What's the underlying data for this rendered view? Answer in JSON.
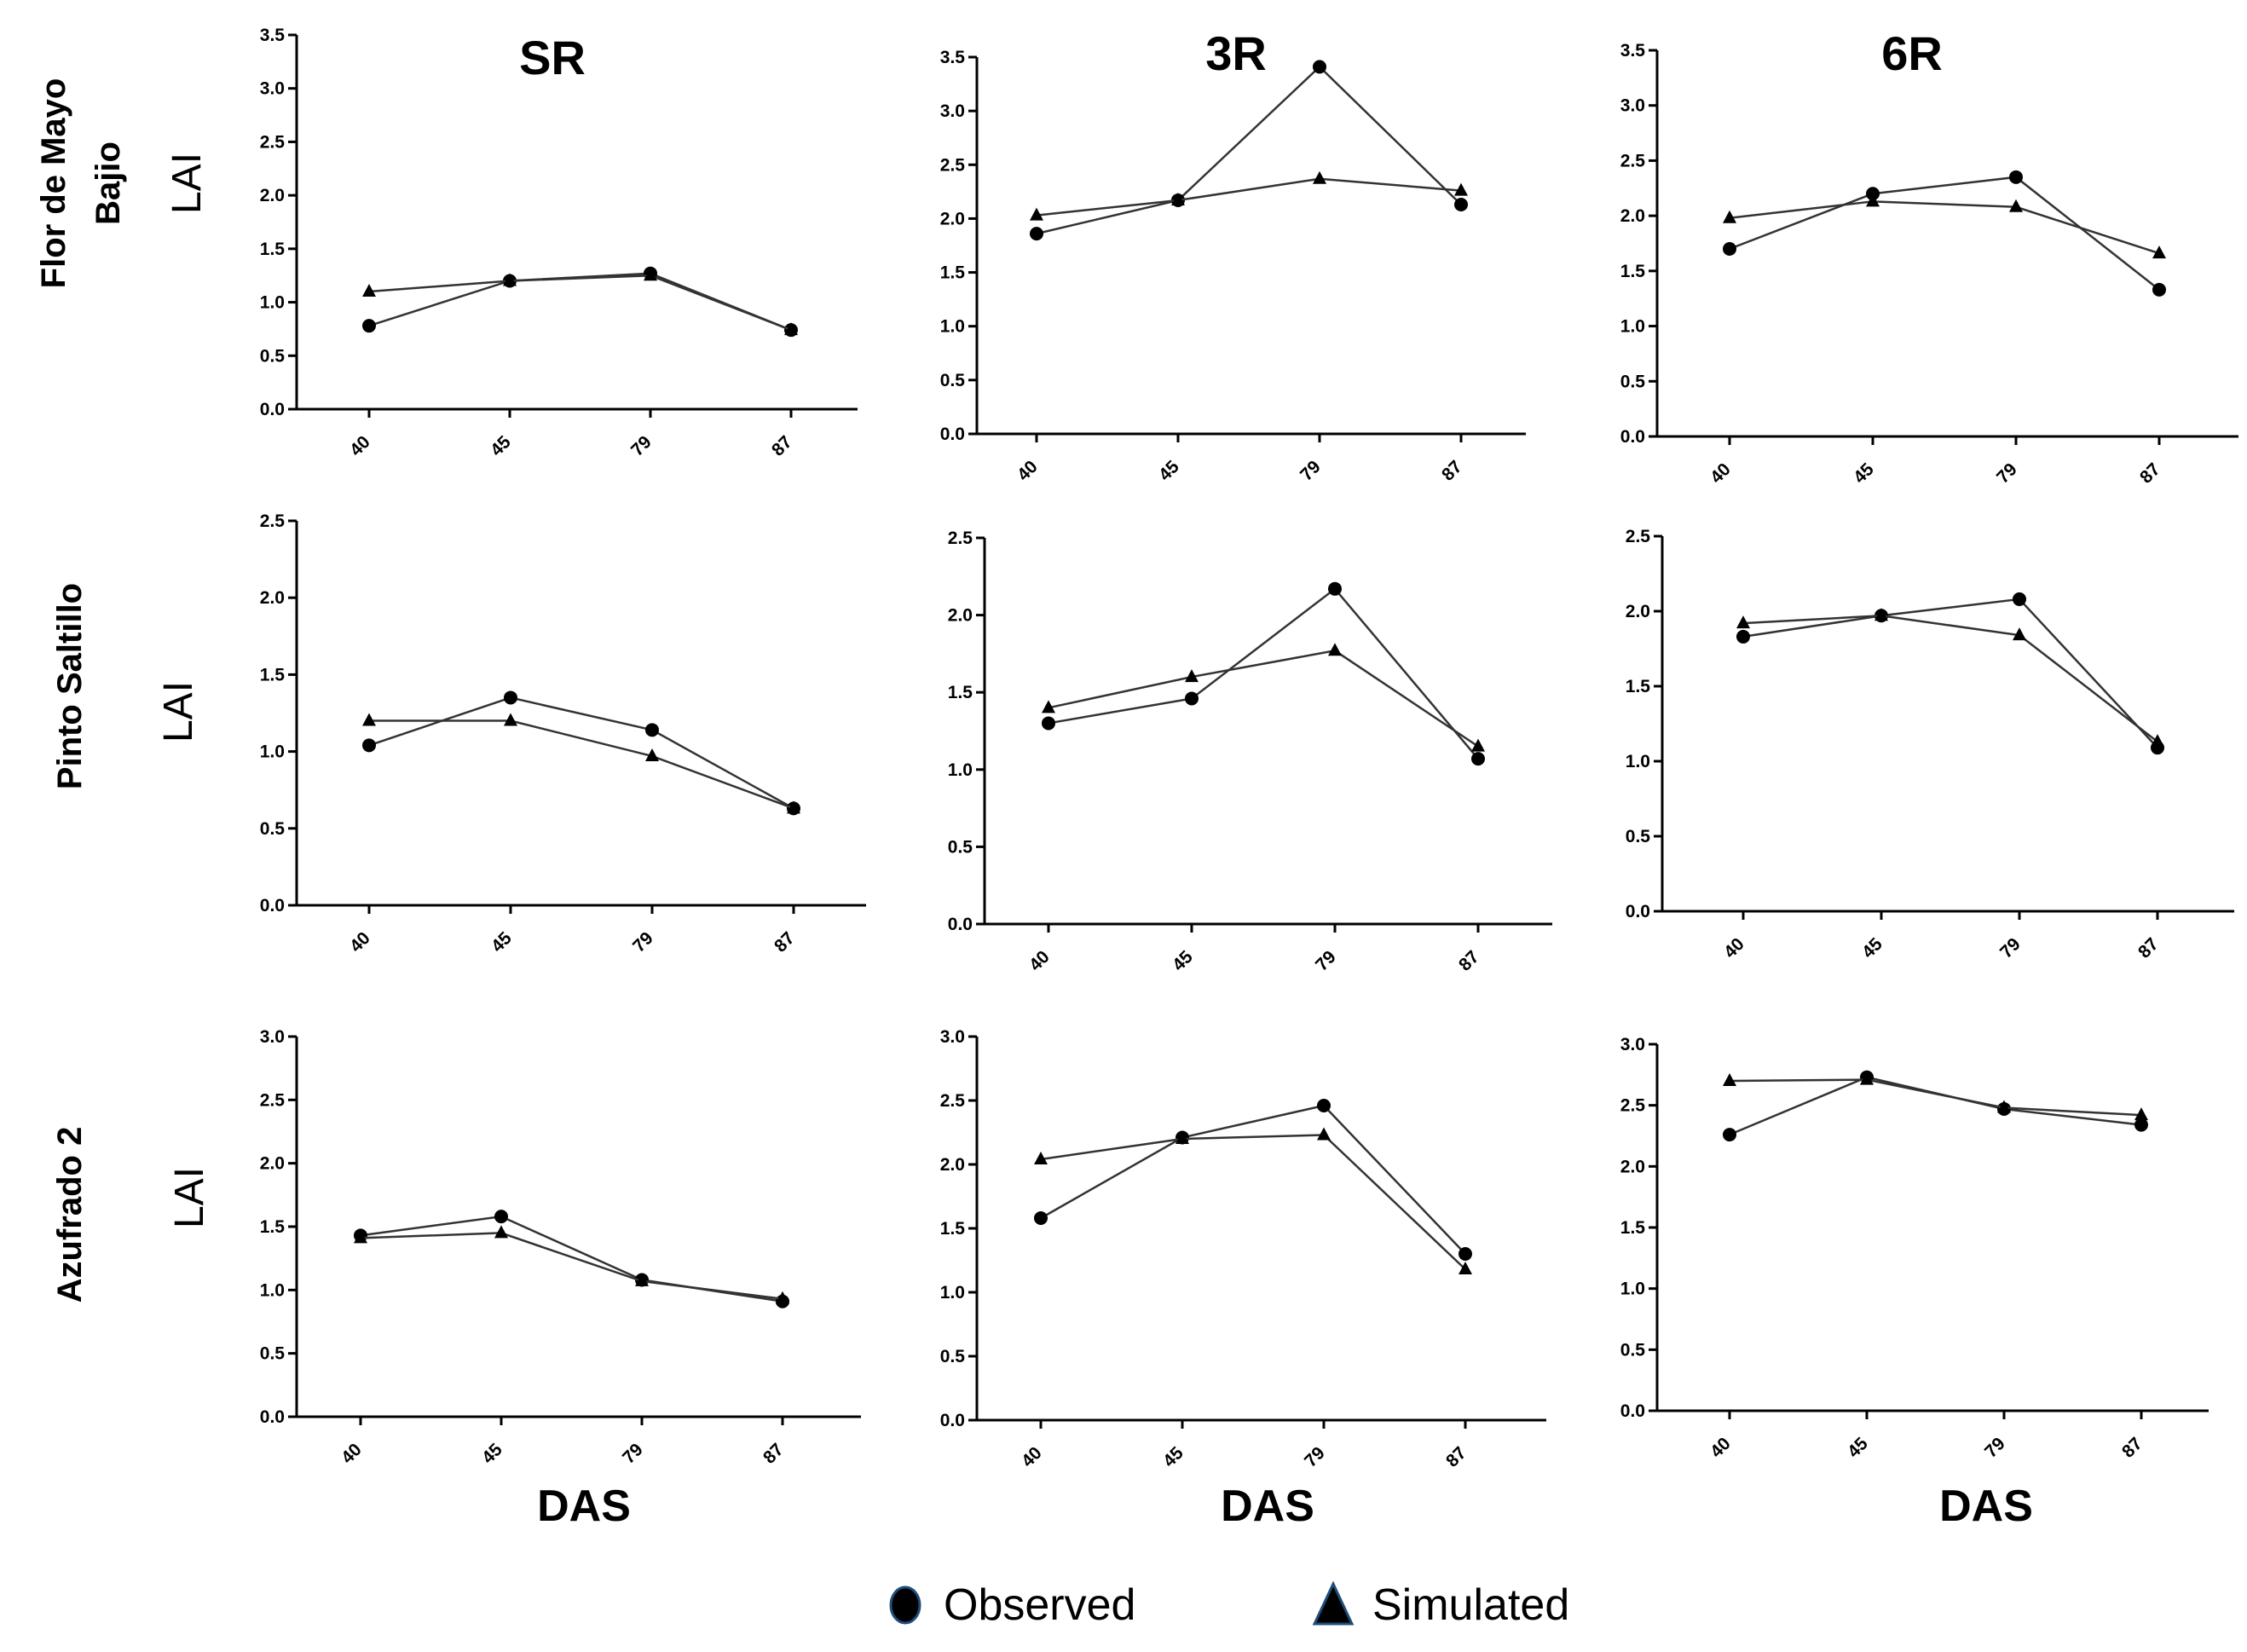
{
  "column_titles": [
    "SR",
    "3R",
    "6R"
  ],
  "row_labels": [
    [
      "Flor de Mayo",
      "Bajio"
    ],
    [
      "Pinto Saltillo"
    ],
    [
      "Azufrado 2"
    ]
  ],
  "y_label": "LAI",
  "x_label": "DAS",
  "legend": {
    "observed": "Observed",
    "simulated": "Simulated",
    "colors": {
      "observed_marker": "#000000",
      "simulated_marker": "#000000",
      "legend_outline": "#1f4e79"
    }
  },
  "chart_data": [
    {
      "type": "line",
      "row": 0,
      "col": 0,
      "categories": [
        "40",
        "45",
        "79",
        "87"
      ],
      "ylim": [
        0,
        3.5
      ],
      "yticks": [
        "0.0",
        "0.5",
        "1.0",
        "1.5",
        "2.0",
        "2.5",
        "3.0",
        "3.5"
      ],
      "series": [
        {
          "name": "Observed",
          "marker": "circle",
          "values": [
            0.78,
            1.2,
            1.27,
            0.74
          ]
        },
        {
          "name": "Simulated",
          "marker": "triangle",
          "values": [
            1.1,
            1.2,
            1.25,
            0.74
          ]
        }
      ]
    },
    {
      "type": "line",
      "row": 0,
      "col": 1,
      "categories": [
        "40",
        "45",
        "79",
        "87"
      ],
      "ylim": [
        0,
        3.5
      ],
      "yticks": [
        "0.0",
        "0.5",
        "1.0",
        "1.5",
        "2.0",
        "2.5",
        "3.0",
        "3.5"
      ],
      "series": [
        {
          "name": "Observed",
          "marker": "circle",
          "values": [
            1.86,
            2.17,
            3.41,
            2.13
          ]
        },
        {
          "name": "Simulated",
          "marker": "triangle",
          "values": [
            2.03,
            2.17,
            2.37,
            2.26
          ]
        }
      ]
    },
    {
      "type": "line",
      "row": 0,
      "col": 2,
      "categories": [
        "40",
        "45",
        "79",
        "87"
      ],
      "ylim": [
        0,
        3.5
      ],
      "yticks": [
        "0.0",
        "0.5",
        "1.0",
        "1.5",
        "2.0",
        "2.5",
        "3.0",
        "3.5"
      ],
      "series": [
        {
          "name": "Observed",
          "marker": "circle",
          "values": [
            1.7,
            2.2,
            2.35,
            1.33
          ]
        },
        {
          "name": "Simulated",
          "marker": "triangle",
          "values": [
            1.98,
            2.13,
            2.08,
            1.66
          ]
        }
      ]
    },
    {
      "type": "line",
      "row": 1,
      "col": 0,
      "categories": [
        "40",
        "45",
        "79",
        "87"
      ],
      "ylim": [
        0,
        2.5
      ],
      "yticks": [
        "0.0",
        "0.5",
        "1.0",
        "1.5",
        "2.0",
        "2.5"
      ],
      "series": [
        {
          "name": "Observed",
          "marker": "circle",
          "values": [
            1.04,
            1.35,
            1.14,
            0.63
          ]
        },
        {
          "name": "Simulated",
          "marker": "triangle",
          "values": [
            1.2,
            1.2,
            0.97,
            0.63
          ]
        }
      ]
    },
    {
      "type": "line",
      "row": 1,
      "col": 1,
      "categories": [
        "40",
        "45",
        "79",
        "87"
      ],
      "ylim": [
        0,
        2.5
      ],
      "yticks": [
        "0.0",
        "0.5",
        "1.0",
        "1.5",
        "2.0",
        "2.5"
      ],
      "series": [
        {
          "name": "Observed",
          "marker": "circle",
          "values": [
            1.3,
            1.46,
            2.17,
            1.07
          ]
        },
        {
          "name": "Simulated",
          "marker": "triangle",
          "values": [
            1.4,
            1.6,
            1.77,
            1.15
          ]
        }
      ]
    },
    {
      "type": "line",
      "row": 1,
      "col": 2,
      "categories": [
        "40",
        "45",
        "79",
        "87"
      ],
      "ylim": [
        0,
        2.5
      ],
      "yticks": [
        "0.0",
        "0.5",
        "1.0",
        "1.5",
        "2.0",
        "2.5"
      ],
      "series": [
        {
          "name": "Observed",
          "marker": "circle",
          "values": [
            1.83,
            1.97,
            2.08,
            1.09
          ]
        },
        {
          "name": "Simulated",
          "marker": "triangle",
          "values": [
            1.92,
            1.97,
            1.84,
            1.13
          ]
        }
      ]
    },
    {
      "type": "line",
      "row": 2,
      "col": 0,
      "categories": [
        "40",
        "45",
        "79",
        "87"
      ],
      "ylim": [
        0,
        3.0
      ],
      "yticks": [
        "0.0",
        "0.5",
        "1.0",
        "1.5",
        "2.0",
        "2.5",
        "3.0"
      ],
      "series": [
        {
          "name": "Observed",
          "marker": "circle",
          "values": [
            1.43,
            1.58,
            1.08,
            0.91
          ]
        },
        {
          "name": "Simulated",
          "marker": "triangle",
          "values": [
            1.41,
            1.45,
            1.07,
            0.93
          ]
        }
      ]
    },
    {
      "type": "line",
      "row": 2,
      "col": 1,
      "categories": [
        "40",
        "45",
        "79",
        "87"
      ],
      "ylim": [
        0,
        3.0
      ],
      "yticks": [
        "0.0",
        "0.5",
        "1.0",
        "1.5",
        "2.0",
        "2.5",
        "3.0"
      ],
      "series": [
        {
          "name": "Observed",
          "marker": "circle",
          "values": [
            1.58,
            2.21,
            2.46,
            1.3
          ]
        },
        {
          "name": "Simulated",
          "marker": "triangle",
          "values": [
            2.04,
            2.2,
            2.23,
            1.18
          ]
        }
      ]
    },
    {
      "type": "line",
      "row": 2,
      "col": 2,
      "categories": [
        "40",
        "45",
        "79",
        "87"
      ],
      "ylim": [
        0,
        3.0
      ],
      "yticks": [
        "0.0",
        "0.5",
        "1.0",
        "1.5",
        "2.0",
        "2.5",
        "3.0"
      ],
      "series": [
        {
          "name": "Observed",
          "marker": "circle",
          "values": [
            2.26,
            2.73,
            2.47,
            2.34
          ]
        },
        {
          "name": "Simulated",
          "marker": "triangle",
          "values": [
            2.7,
            2.71,
            2.48,
            2.42
          ]
        }
      ]
    }
  ]
}
